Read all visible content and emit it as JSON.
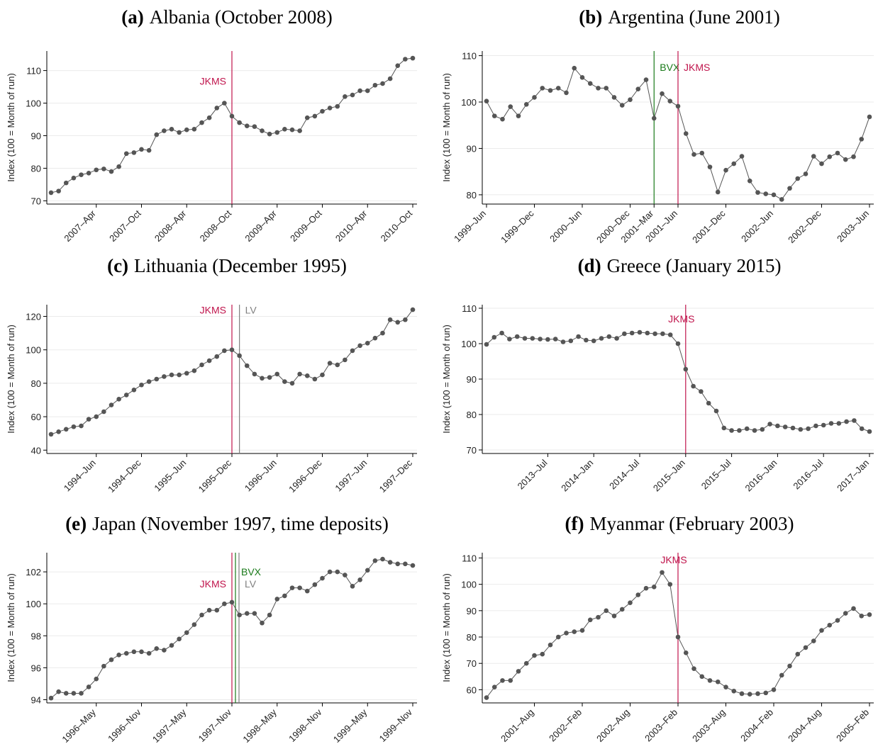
{
  "chart_data": [
    {
      "type": "line",
      "label": "(a)",
      "title": "Albania (October 2008)",
      "ylabel": "Index (100 = Month of run)",
      "color": "#555555",
      "grid": true,
      "x": [
        "2006-10",
        "2006-11",
        "2006-12",
        "2007-01",
        "2007-02",
        "2007-03",
        "2007-04",
        "2007-05",
        "2007-06",
        "2007-07",
        "2007-08",
        "2007-09",
        "2007-10",
        "2007-11",
        "2007-12",
        "2008-01",
        "2008-02",
        "2008-03",
        "2008-04",
        "2008-05",
        "2008-06",
        "2008-07",
        "2008-08",
        "2008-09",
        "2008-10",
        "2008-11",
        "2008-12",
        "2009-01",
        "2009-02",
        "2009-03",
        "2009-04",
        "2009-05",
        "2009-06",
        "2009-07",
        "2009-08",
        "2009-09",
        "2009-10",
        "2009-11",
        "2009-12",
        "2010-01",
        "2010-02",
        "2010-03",
        "2010-04",
        "2010-05",
        "2010-06",
        "2010-07",
        "2010-08",
        "2010-09",
        "2010-10"
      ],
      "values": [
        72.5,
        73,
        75.5,
        77,
        78,
        78.5,
        79.5,
        79.8,
        79,
        80.5,
        84.5,
        84.8,
        85.8,
        85.5,
        90.3,
        91.5,
        92,
        91,
        91.8,
        92,
        94,
        95.5,
        98.5,
        100,
        96,
        94,
        93,
        92.8,
        91.5,
        90.5,
        91,
        92,
        91.8,
        91.5,
        95.5,
        96,
        97.5,
        98.5,
        99,
        102,
        102.5,
        103.8,
        103.8,
        105.5,
        106,
        107.5,
        111.5,
        113.5,
        113.8
      ],
      "ylim": [
        69,
        116
      ],
      "yticks": [
        70,
        80,
        90,
        100,
        110
      ],
      "xticks": [
        {
          "value": "2007-04",
          "label": "2007–Apr"
        },
        {
          "value": "2007-10",
          "label": "2007–Oct"
        },
        {
          "value": "2008-04",
          "label": "2008–Apr"
        },
        {
          "value": "2008-10",
          "label": "2008–Oct"
        },
        {
          "value": "2009-04",
          "label": "2009–Apr"
        },
        {
          "value": "2009-10",
          "label": "2009–Oct"
        },
        {
          "value": "2010-04",
          "label": "2010–Apr"
        },
        {
          "value": "2010-10",
          "label": "2010–Oct"
        }
      ],
      "annotations": [
        {
          "text": "JKMS",
          "x": "2008-10",
          "color": "#c0144c"
        }
      ]
    },
    {
      "type": "line",
      "label": "(b)",
      "title": "Argentina (June 2001)",
      "ylabel": "Index (100 = Month of run)",
      "color": "#555555",
      "grid": true,
      "x": [
        "1999-06",
        "1999-07",
        "1999-08",
        "1999-09",
        "1999-10",
        "1999-11",
        "1999-12",
        "2000-01",
        "2000-02",
        "2000-03",
        "2000-04",
        "2000-05",
        "2000-06",
        "2000-07",
        "2000-08",
        "2000-09",
        "2000-10",
        "2000-11",
        "2000-12",
        "2001-01",
        "2001-02",
        "2001-03",
        "2001-04",
        "2001-05",
        "2001-06",
        "2001-07",
        "2001-08",
        "2001-09",
        "2001-10",
        "2001-11",
        "2001-12",
        "2002-01",
        "2002-02",
        "2002-03",
        "2002-04",
        "2002-05",
        "2002-06",
        "2002-07",
        "2002-08",
        "2002-09",
        "2002-10",
        "2002-11",
        "2002-12",
        "2003-01",
        "2003-02",
        "2003-03",
        "2003-04",
        "2003-05",
        "2003-06"
      ],
      "values": [
        100.2,
        97,
        96.3,
        99,
        97,
        99.5,
        101,
        103,
        102.5,
        103,
        102,
        107.3,
        105.3,
        104,
        103,
        103,
        101,
        99.3,
        100.5,
        102.8,
        104.8,
        96.5,
        101.8,
        100.2,
        99.1,
        93.2,
        88.7,
        89,
        86,
        80.6,
        85.3,
        86.7,
        88.3,
        83,
        80.5,
        80.2,
        80,
        79,
        81.4,
        83.5,
        84.5,
        88.3,
        86.7,
        88.2,
        89,
        87.6,
        88.2,
        92,
        96.8
      ],
      "ylim": [
        78,
        111
      ],
      "yticks": [
        80,
        90,
        100,
        110
      ],
      "xticks": [
        {
          "value": "1999-06",
          "label": "1999–Jun"
        },
        {
          "value": "1999-12",
          "label": "1999–Dec"
        },
        {
          "value": "2000-06",
          "label": "2000–Jun"
        },
        {
          "value": "2000-12",
          "label": "2000–Dec"
        },
        {
          "value": "2001-03",
          "label": "2001–Mar"
        },
        {
          "value": "2001-06",
          "label": "2001–Jun"
        },
        {
          "value": "2001-12",
          "label": "2001–Dec"
        },
        {
          "value": "2002-06",
          "label": "2002–Jun"
        },
        {
          "value": "2002-12",
          "label": "2002–Dec"
        },
        {
          "value": "2003-06",
          "label": "2003–Jun"
        }
      ],
      "annotations": [
        {
          "text": "BVX",
          "x": "2001-03",
          "color": "#1a7a1a"
        },
        {
          "text": "JKMS",
          "x": "2001-06",
          "color": "#c0144c"
        }
      ]
    },
    {
      "type": "line",
      "label": "(c)",
      "title": "Lithuania (December 1995)",
      "ylabel": "Index (100 = Month of run)",
      "color": "#555555",
      "grid": true,
      "x": [
        "1993-12",
        "1994-01",
        "1994-02",
        "1994-03",
        "1994-04",
        "1994-05",
        "1994-06",
        "1994-07",
        "1994-08",
        "1994-09",
        "1994-10",
        "1994-11",
        "1994-12",
        "1995-01",
        "1995-02",
        "1995-03",
        "1995-04",
        "1995-05",
        "1995-06",
        "1995-07",
        "1995-08",
        "1995-09",
        "1995-10",
        "1995-11",
        "1995-12",
        "1996-01",
        "1996-02",
        "1996-03",
        "1996-04",
        "1996-05",
        "1996-06",
        "1996-07",
        "1996-08",
        "1996-09",
        "1996-10",
        "1996-11",
        "1996-12",
        "1997-01",
        "1997-02",
        "1997-03",
        "1997-04",
        "1997-05",
        "1997-06",
        "1997-07",
        "1997-08",
        "1997-09",
        "1997-10",
        "1997-11",
        "1997-12"
      ],
      "values": [
        49.5,
        51,
        52.5,
        54,
        54.5,
        58.5,
        60,
        63,
        67,
        70.5,
        73,
        76,
        79,
        81,
        82.5,
        84,
        85,
        85,
        86,
        87.5,
        91,
        93.5,
        96,
        99.5,
        100,
        96.5,
        90.5,
        85.5,
        83,
        83.5,
        85.5,
        81,
        80,
        85.5,
        84.5,
        82.5,
        85,
        92,
        91,
        94,
        99.5,
        102.5,
        104,
        107,
        110,
        118,
        116.5,
        118,
        124
      ],
      "ylim": [
        38,
        127
      ],
      "yticks": [
        40,
        60,
        80,
        100,
        120
      ],
      "xticks": [
        {
          "value": "1994-06",
          "label": "1994–Jun"
        },
        {
          "value": "1994-12",
          "label": "1994–Dec"
        },
        {
          "value": "1995-06",
          "label": "1995–Jun"
        },
        {
          "value": "1995-12",
          "label": "1995–Dec"
        },
        {
          "value": "1996-06",
          "label": "1996–Jun"
        },
        {
          "value": "1996-12",
          "label": "1996–Dec"
        },
        {
          "value": "1997-06",
          "label": "1997–Jun"
        },
        {
          "value": "1997-12",
          "label": "1997–Dec"
        }
      ],
      "annotations": [
        {
          "text": "JKMS",
          "x": "1995-12",
          "color": "#c0144c"
        },
        {
          "text": "LV",
          "x": "1996-01",
          "color": "#808080"
        }
      ]
    },
    {
      "type": "line",
      "label": "(d)",
      "title": "Greece (January 2015)",
      "ylabel": "Index (100 = Month of run)",
      "color": "#555555",
      "grid": true,
      "x": [
        "2012-11",
        "2012-12",
        "2013-01",
        "2013-02",
        "2013-03",
        "2013-04",
        "2013-05",
        "2013-06",
        "2013-07",
        "2013-08",
        "2013-09",
        "2013-10",
        "2013-11",
        "2013-12",
        "2014-01",
        "2014-02",
        "2014-03",
        "2014-04",
        "2014-05",
        "2014-06",
        "2014-07",
        "2014-08",
        "2014-09",
        "2014-10",
        "2014-11",
        "2014-12",
        "2015-01",
        "2015-02",
        "2015-03",
        "2015-04",
        "2015-05",
        "2015-06",
        "2015-07",
        "2015-08",
        "2015-09",
        "2015-10",
        "2015-11",
        "2015-12",
        "2016-01",
        "2016-02",
        "2016-03",
        "2016-04",
        "2016-05",
        "2016-06",
        "2016-07",
        "2016-08",
        "2016-09",
        "2016-10",
        "2016-11",
        "2016-12",
        "2017-01"
      ],
      "values": [
        99.8,
        101.8,
        103,
        101.3,
        102,
        101.5,
        101.5,
        101.3,
        101.2,
        101.3,
        100.5,
        100.8,
        102,
        101,
        100.8,
        101.5,
        102,
        101.5,
        102.8,
        103,
        103.2,
        103,
        102.8,
        102.8,
        102.5,
        100,
        92.8,
        88,
        86.5,
        83.2,
        81,
        76.2,
        75.5,
        75.5,
        76,
        75.5,
        75.8,
        77.3,
        76.8,
        76.5,
        76.2,
        75.8,
        76,
        76.8,
        77,
        77.5,
        77.5,
        78,
        78.3,
        76,
        75.2
      ],
      "ylim": [
        69,
        111
      ],
      "yticks": [
        70,
        80,
        90,
        100,
        110
      ],
      "xticks": [
        {
          "value": "2013-07",
          "label": "2013–Jul"
        },
        {
          "value": "2014-01",
          "label": "2014–Jan"
        },
        {
          "value": "2014-07",
          "label": "2014–Jul"
        },
        {
          "value": "2015-01",
          "label": "2015–Jan"
        },
        {
          "value": "2015-07",
          "label": "2015–Jul"
        },
        {
          "value": "2016-01",
          "label": "2016–Jan"
        },
        {
          "value": "2016-07",
          "label": "2016–Jul"
        },
        {
          "value": "2017-01",
          "label": "2017–Jan"
        }
      ],
      "annotations": [
        {
          "text": "JKMS",
          "x": "2015-01",
          "color": "#c0144c"
        }
      ]
    },
    {
      "type": "line",
      "label": "(e)",
      "title": "Japan (November 1997, time deposits)",
      "ylabel": "Index (100 = Month of run)",
      "color": "#555555",
      "grid": true,
      "x": [
        "1995-11",
        "1995-12",
        "1996-01",
        "1996-02",
        "1996-03",
        "1996-04",
        "1996-05",
        "1996-06",
        "1996-07",
        "1996-08",
        "1996-09",
        "1996-10",
        "1996-11",
        "1996-12",
        "1997-01",
        "1997-02",
        "1997-03",
        "1997-04",
        "1997-05",
        "1997-06",
        "1997-07",
        "1997-08",
        "1997-09",
        "1997-10",
        "1997-11",
        "1997-12",
        "1998-01",
        "1998-02",
        "1998-03",
        "1998-04",
        "1998-05",
        "1998-06",
        "1998-07",
        "1998-08",
        "1998-09",
        "1998-10",
        "1998-11",
        "1998-12",
        "1999-01",
        "1999-02",
        "1999-03",
        "1999-04",
        "1999-05",
        "1999-06",
        "1999-07",
        "1999-08",
        "1999-09",
        "1999-10",
        "1999-11"
      ],
      "values": [
        94.1,
        94.5,
        94.4,
        94.4,
        94.4,
        94.8,
        95.3,
        96.1,
        96.5,
        96.8,
        96.9,
        97,
        97,
        96.9,
        97.2,
        97.1,
        97.4,
        97.8,
        98.2,
        98.7,
        99.3,
        99.6,
        99.6,
        100,
        100.1,
        99.3,
        99.4,
        99.4,
        98.8,
        99.3,
        100.3,
        100.5,
        101,
        101,
        100.8,
        101.2,
        101.6,
        102,
        102,
        101.8,
        101.1,
        101.5,
        102.1,
        102.7,
        102.8,
        102.6,
        102.5,
        102.5,
        102.4
      ],
      "ylim": [
        93.8,
        103.2
      ],
      "yticks": [
        94,
        96,
        98,
        100,
        102
      ],
      "xticks": [
        {
          "value": "1996-05",
          "label": "1996–May"
        },
        {
          "value": "1996-11",
          "label": "1996–Nov"
        },
        {
          "value": "1997-05",
          "label": "1997–May"
        },
        {
          "value": "1997-11",
          "label": "1997–Nov"
        },
        {
          "value": "1998-05",
          "label": "1998–May"
        },
        {
          "value": "1998-11",
          "label": "1998–Nov"
        },
        {
          "value": "1999-05",
          "label": "1999–May"
        },
        {
          "value": "1999-11",
          "label": "1999–Nov"
        }
      ],
      "annotations": [
        {
          "text": "JKMS",
          "x": "1997-11",
          "color": "#c0144c"
        },
        {
          "text": "BVX",
          "x": "1997-11",
          "color": "#1a7a1a"
        },
        {
          "text": "LV",
          "x": "1997-11",
          "color": "#808080"
        }
      ]
    },
    {
      "type": "line",
      "label": "(f)",
      "title": "Myanmar (February 2003)",
      "ylabel": "Index (100 = Month of run)",
      "color": "#555555",
      "grid": true,
      "x": [
        "2001-02",
        "2001-03",
        "2001-04",
        "2001-05",
        "2001-06",
        "2001-07",
        "2001-08",
        "2001-09",
        "2001-10",
        "2001-11",
        "2001-12",
        "2002-01",
        "2002-02",
        "2002-03",
        "2002-04",
        "2002-05",
        "2002-06",
        "2002-07",
        "2002-08",
        "2002-09",
        "2002-10",
        "2002-11",
        "2002-12",
        "2003-01",
        "2003-02",
        "2003-03",
        "2003-04",
        "2003-05",
        "2003-06",
        "2003-07",
        "2003-08",
        "2003-09",
        "2003-10",
        "2003-11",
        "2003-12",
        "2004-01",
        "2004-02",
        "2004-03",
        "2004-04",
        "2004-05",
        "2004-06",
        "2004-07",
        "2004-08",
        "2004-09",
        "2004-10",
        "2004-11",
        "2004-12",
        "2005-01",
        "2005-02"
      ],
      "values": [
        57,
        61,
        63.5,
        63.5,
        67,
        70,
        73,
        73.5,
        77,
        80,
        81.5,
        82,
        82.5,
        86.5,
        87.5,
        90,
        88,
        90.5,
        93,
        96,
        98.5,
        99,
        104.5,
        100,
        80,
        74,
        68,
        65,
        63.5,
        63,
        61,
        59.5,
        58.5,
        58.3,
        58.5,
        58.8,
        60,
        65.5,
        69,
        73.5,
        76,
        78.5,
        82.5,
        84.5,
        86.3,
        89,
        90.8,
        88,
        88.5
      ],
      "ylim": [
        55,
        112
      ],
      "yticks": [
        60,
        70,
        80,
        90,
        100,
        110
      ],
      "xticks": [
        {
          "value": "2001-08",
          "label": "2001–Aug"
        },
        {
          "value": "2002-02",
          "label": "2002–Feb"
        },
        {
          "value": "2002-08",
          "label": "2002–Aug"
        },
        {
          "value": "2003-02",
          "label": "2003–Feb"
        },
        {
          "value": "2003-08",
          "label": "2003–Aug"
        },
        {
          "value": "2004-02",
          "label": "2004–Feb"
        },
        {
          "value": "2004-08",
          "label": "2004–Aug"
        },
        {
          "value": "2005-02",
          "label": "2005–Feb"
        }
      ],
      "annotations": [
        {
          "text": "JKMS",
          "x": "2003-02",
          "color": "#c0144c"
        }
      ]
    }
  ]
}
